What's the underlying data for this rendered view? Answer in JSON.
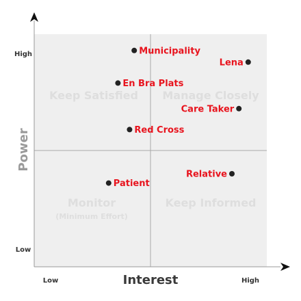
{
  "chart_data": {
    "type": "scatter",
    "xlabel": "Interest",
    "ylabel": "Power",
    "x_ticks": {
      "low": "Low",
      "high": "High"
    },
    "y_ticks": {
      "low": "Low",
      "high": "High"
    },
    "xlim": [
      0,
      1
    ],
    "ylim": [
      0,
      1
    ],
    "quadrants": [
      {
        "id": "top-left",
        "label": "Keep Satisfied",
        "sub": ""
      },
      {
        "id": "top-right",
        "label": "Manage Closely",
        "sub": ""
      },
      {
        "id": "bottom-left",
        "label": "Monitor",
        "sub": "(Minimum Effort)"
      },
      {
        "id": "bottom-right",
        "label": "Keep Informed",
        "sub": ""
      }
    ],
    "points": [
      {
        "label": "Municipality",
        "x": 0.43,
        "y": 0.93,
        "side": "right"
      },
      {
        "label": "Lena",
        "x": 0.92,
        "y": 0.88,
        "side": "left"
      },
      {
        "label": "En Bra Plats",
        "x": 0.36,
        "y": 0.79,
        "side": "right"
      },
      {
        "label": "Care Taker",
        "x": 0.88,
        "y": 0.68,
        "side": "left"
      },
      {
        "label": "Red Cross",
        "x": 0.41,
        "y": 0.59,
        "side": "right"
      },
      {
        "label": "Relative",
        "x": 0.85,
        "y": 0.4,
        "side": "left"
      },
      {
        "label": "Patient",
        "x": 0.32,
        "y": 0.36,
        "side": "right"
      }
    ],
    "colors": {
      "plot_bg": "#efefef",
      "axis": "#999999",
      "point": "#222222",
      "label": "#e8141e"
    }
  }
}
